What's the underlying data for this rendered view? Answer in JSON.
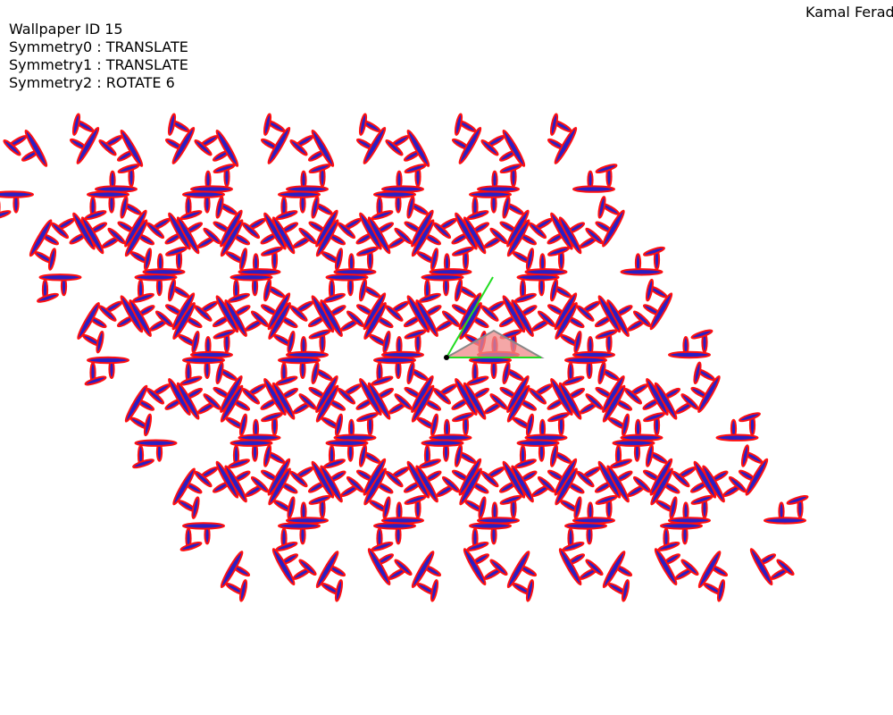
{
  "header": {
    "title": "Wallpaper ID 15",
    "symmetries": [
      {
        "label": "Symmetry0 : TRANSLATE"
      },
      {
        "label": "Symmetry1 : TRANSLATE"
      },
      {
        "label": "Symmetry2 : ROTATE 6"
      }
    ],
    "author": "Kamal Ferad"
  },
  "pattern": {
    "group": "p6",
    "rotation_order": 6,
    "motif_fill": "#2a1fc4",
    "motif_stroke": "#ff1010",
    "fundamental_region_fill": "#f08a8a",
    "fundamental_region_stroke": "#888888",
    "lattice_vector_color": "#22dd22",
    "origin_color": "#000000"
  }
}
